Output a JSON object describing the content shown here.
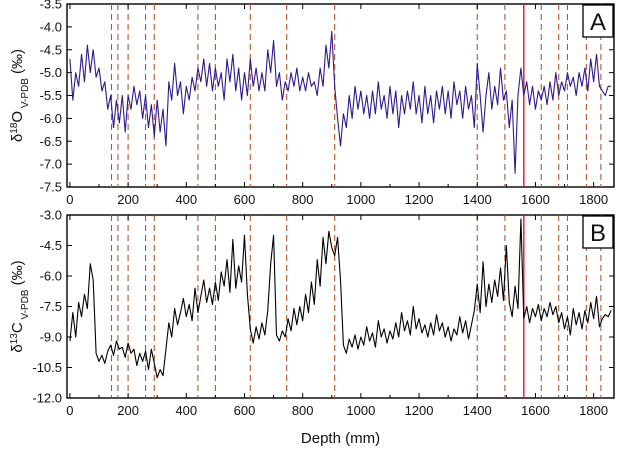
{
  "chart_data": [
    {
      "type": "line",
      "panel_label": "A",
      "ylabel": "δ18O V-PDB (‰)",
      "xlim": [
        -10,
        1870
      ],
      "ylim": [
        -7.5,
        -3.5
      ],
      "y_inverted": true,
      "xticks": [
        "0",
        "200",
        "400",
        "600",
        "800",
        "1000",
        "1200",
        "1400",
        "1600",
        "1800"
      ],
      "yticks": [
        "-3.5",
        "-4.0",
        "-4.5",
        "-5.0",
        "-5.5",
        "-6.0",
        "-6.5",
        "-7.0",
        "-7.5"
      ],
      "line_color": "#2e1a8c",
      "series": [
        {
          "x": [
            0,
            10,
            20,
            30,
            40,
            50,
            60,
            70,
            80,
            90,
            100,
            110,
            120,
            130,
            140,
            150,
            160,
            170,
            180,
            190,
            200,
            210,
            220,
            230,
            240,
            250,
            260,
            270,
            280,
            290,
            300,
            310,
            320,
            330,
            340,
            350,
            360,
            370,
            380,
            390,
            400,
            410,
            420,
            430,
            440,
            450,
            460,
            470,
            480,
            490,
            500,
            510,
            520,
            530,
            540,
            550,
            560,
            570,
            580,
            590,
            600,
            610,
            620,
            630,
            640,
            650,
            660,
            670,
            680,
            690,
            700,
            710,
            720,
            730,
            740,
            750,
            760,
            770,
            780,
            790,
            800,
            810,
            820,
            830,
            840,
            850,
            860,
            870,
            880,
            890,
            900,
            910,
            920,
            930,
            940,
            950,
            960,
            970,
            980,
            990,
            1000,
            1010,
            1020,
            1030,
            1040,
            1050,
            1060,
            1070,
            1080,
            1090,
            1100,
            1110,
            1120,
            1130,
            1140,
            1150,
            1160,
            1170,
            1180,
            1190,
            1200,
            1210,
            1220,
            1230,
            1240,
            1250,
            1260,
            1270,
            1280,
            1290,
            1300,
            1310,
            1320,
            1330,
            1340,
            1350,
            1360,
            1370,
            1380,
            1390,
            1400,
            1410,
            1420,
            1430,
            1440,
            1450,
            1460,
            1470,
            1480,
            1490,
            1500,
            1510,
            1520,
            1530,
            1540,
            1550,
            1560,
            1570,
            1580,
            1590,
            1600,
            1610,
            1620,
            1630,
            1640,
            1650,
            1660,
            1670,
            1680,
            1690,
            1700,
            1710,
            1720,
            1730,
            1740,
            1750,
            1760,
            1770,
            1780,
            1790,
            1800,
            1810,
            1820,
            1830,
            1840,
            1850,
            1860
          ],
          "y": [
            -4.7,
            -5.6,
            -5.0,
            -5.3,
            -4.6,
            -5.2,
            -4.4,
            -5.0,
            -4.5,
            -5.1,
            -4.9,
            -5.4,
            -5.2,
            -5.8,
            -5.5,
            -6.2,
            -5.6,
            -6.1,
            -5.5,
            -6.3,
            -5.5,
            -5.8,
            -5.3,
            -5.7,
            -5.4,
            -6.0,
            -5.5,
            -6.2,
            -5.7,
            -6.4,
            -5.6,
            -6.3,
            -5.8,
            -6.6,
            -5.2,
            -5.6,
            -4.8,
            -5.5,
            -5.2,
            -5.9,
            -5.3,
            -5.6,
            -5.1,
            -5.4,
            -4.9,
            -5.2,
            -4.7,
            -5.3,
            -4.8,
            -5.4,
            -4.9,
            -5.3,
            -5.0,
            -5.6,
            -4.7,
            -5.2,
            -4.6,
            -5.4,
            -4.9,
            -5.6,
            -5.0,
            -5.5,
            -4.7,
            -5.3,
            -4.9,
            -5.4,
            -5.0,
            -5.4,
            -4.5,
            -5.0,
            -4.3,
            -5.3,
            -5.0,
            -5.6,
            -5.2,
            -5.4,
            -5.0,
            -5.3,
            -4.9,
            -5.4,
            -5.1,
            -5.4,
            -5.0,
            -5.3,
            -5.2,
            -5.5,
            -4.9,
            -5.3,
            -4.4,
            -4.9,
            -4.1,
            -5.3,
            -6.0,
            -6.6,
            -5.9,
            -6.2,
            -5.5,
            -6.0,
            -5.3,
            -5.8,
            -5.4,
            -5.9,
            -5.5,
            -6.0,
            -5.4,
            -5.9,
            -5.2,
            -5.8,
            -5.5,
            -6.0,
            -5.3,
            -5.9,
            -5.4,
            -6.2,
            -5.5,
            -5.9,
            -5.4,
            -5.8,
            -5.2,
            -5.9,
            -5.5,
            -6.1,
            -5.3,
            -5.9,
            -5.5,
            -6.1,
            -5.4,
            -5.8,
            -5.3,
            -5.9,
            -5.4,
            -6.0,
            -5.2,
            -5.7,
            -5.4,
            -6.0,
            -5.3,
            -5.8,
            -5.5,
            -6.2,
            -4.8,
            -5.5,
            -6.3,
            -5.5,
            -5.0,
            -5.8,
            -5.3,
            -5.7,
            -4.9,
            -5.6,
            -5.4,
            -6.2,
            -5.6,
            -7.2,
            -5.5,
            -4.9,
            -5.5,
            -5.2,
            -5.7,
            -5.3,
            -5.8,
            -5.4,
            -5.6,
            -5.3,
            -5.7,
            -5.2,
            -5.6,
            -5.0,
            -5.5,
            -5.2,
            -5.4,
            -5.0,
            -5.3,
            -5.1,
            -5.5,
            -5.0,
            -5.3,
            -4.9,
            -5.4,
            -4.7,
            -5.2,
            -4.6,
            -5.3,
            -5.4,
            -5.5,
            -5.3,
            -5.3
          ]
        }
      ],
      "dashed_markers_x": [
        143,
        165,
        200,
        260,
        290,
        440,
        500,
        620,
        745,
        910,
        1400,
        1495,
        1620,
        1680,
        1710,
        1775,
        1825
      ],
      "solid_marker_x": 1560
    },
    {
      "type": "line",
      "panel_label": "B",
      "ylabel": "δ13C V-PDB (‰)",
      "xlabel": "Depth (mm)",
      "xlim": [
        -10,
        1870
      ],
      "ylim": [
        -12.0,
        -3.0
      ],
      "y_inverted": true,
      "xticks": [
        "0",
        "200",
        "400",
        "600",
        "800",
        "1000",
        "1200",
        "1400",
        "1600",
        "1800"
      ],
      "yticks": [
        "-3.0",
        "-4.5",
        "-6.0",
        "-7.5",
        "-9.0",
        "-10.5",
        "-12.0"
      ],
      "line_color": "#000000",
      "series": [
        {
          "x": [
            0,
            10,
            20,
            30,
            40,
            50,
            60,
            70,
            80,
            90,
            100,
            110,
            120,
            130,
            140,
            150,
            160,
            170,
            180,
            190,
            200,
            210,
            220,
            230,
            240,
            250,
            260,
            270,
            280,
            290,
            300,
            310,
            320,
            330,
            340,
            350,
            360,
            370,
            380,
            390,
            400,
            410,
            420,
            430,
            440,
            450,
            460,
            470,
            480,
            490,
            500,
            510,
            520,
            530,
            540,
            550,
            560,
            570,
            580,
            590,
            600,
            610,
            620,
            630,
            640,
            650,
            660,
            670,
            680,
            690,
            700,
            710,
            720,
            730,
            740,
            750,
            760,
            770,
            780,
            790,
            800,
            810,
            820,
            830,
            840,
            850,
            860,
            870,
            880,
            890,
            900,
            910,
            920,
            930,
            940,
            950,
            960,
            970,
            980,
            990,
            1000,
            1010,
            1020,
            1030,
            1040,
            1050,
            1060,
            1070,
            1080,
            1090,
            1100,
            1110,
            1120,
            1130,
            1140,
            1150,
            1160,
            1170,
            1180,
            1190,
            1200,
            1210,
            1220,
            1230,
            1240,
            1250,
            1260,
            1270,
            1280,
            1290,
            1300,
            1310,
            1320,
            1330,
            1340,
            1350,
            1360,
            1370,
            1380,
            1390,
            1400,
            1410,
            1420,
            1430,
            1440,
            1450,
            1460,
            1470,
            1480,
            1490,
            1500,
            1510,
            1520,
            1530,
            1540,
            1550,
            1560,
            1570,
            1580,
            1590,
            1600,
            1610,
            1620,
            1630,
            1640,
            1650,
            1660,
            1670,
            1680,
            1690,
            1700,
            1710,
            1720,
            1730,
            1740,
            1750,
            1760,
            1770,
            1780,
            1790,
            1800,
            1810,
            1820,
            1830,
            1840,
            1850,
            1860
          ],
          "y": [
            -9.2,
            -7.8,
            -9.0,
            -7.3,
            -8.0,
            -6.9,
            -7.6,
            -5.4,
            -6.2,
            -9.8,
            -10.2,
            -9.9,
            -10.3,
            -9.7,
            -9.4,
            -9.9,
            -9.2,
            -9.6,
            -9.5,
            -10.0,
            -9.3,
            -9.8,
            -9.6,
            -10.4,
            -9.8,
            -10.2,
            -9.7,
            -10.6,
            -9.6,
            -10.3,
            -11.0,
            -10.6,
            -10.9,
            -9.6,
            -8.3,
            -9.0,
            -7.6,
            -8.4,
            -7.8,
            -7.1,
            -8.0,
            -7.4,
            -8.2,
            -6.6,
            -7.8,
            -7.0,
            -6.2,
            -7.3,
            -6.6,
            -7.4,
            -6.3,
            -7.2,
            -5.8,
            -6.5,
            -5.2,
            -6.8,
            -4.2,
            -6.6,
            -5.5,
            -6.3,
            -4.0,
            -6.9,
            -8.6,
            -9.3,
            -8.5,
            -9.1,
            -8.3,
            -8.9,
            -7.7,
            -5.4,
            -4.0,
            -8.9,
            -9.2,
            -8.7,
            -9.0,
            -8.1,
            -8.7,
            -7.6,
            -8.4,
            -7.5,
            -8.2,
            -6.9,
            -7.8,
            -6.3,
            -7.4,
            -5.2,
            -6.5,
            -4.1,
            -5.4,
            -3.8,
            -4.6,
            -5.0,
            -4.1,
            -6.2,
            -9.4,
            -9.8,
            -9.1,
            -9.5,
            -8.9,
            -9.6,
            -9.0,
            -9.4,
            -8.5,
            -9.2,
            -8.8,
            -9.5,
            -8.2,
            -9.0,
            -8.6,
            -9.3,
            -8.7,
            -9.1,
            -8.3,
            -9.0,
            -7.8,
            -8.7,
            -8.2,
            -8.9,
            -7.5,
            -8.6,
            -8.1,
            -8.8,
            -8.4,
            -9.0,
            -8.3,
            -8.9,
            -7.9,
            -8.7,
            -8.3,
            -9.0,
            -8.5,
            -9.2,
            -8.6,
            -8.9,
            -8.0,
            -8.8,
            -8.2,
            -9.1,
            -8.4,
            -7.7,
            -6.4,
            -7.8,
            -5.3,
            -7.5,
            -6.4,
            -7.3,
            -6.2,
            -7.0,
            -5.6,
            -7.2,
            -4.5,
            -7.3,
            -8.0,
            -6.5,
            -7.6,
            -3.2,
            -8.1,
            -7.5,
            -8.3,
            -7.6,
            -8.0,
            -7.4,
            -8.2,
            -7.6,
            -8.0,
            -7.3,
            -7.9,
            -7.5,
            -8.3,
            -7.8,
            -8.6,
            -8.0,
            -8.9,
            -7.6,
            -8.4,
            -7.8,
            -8.6,
            -7.7,
            -8.3,
            -7.3,
            -8.1,
            -7.0,
            -8.5,
            -8.1,
            -7.9,
            -8.0,
            -7.7
          ]
        }
      ],
      "dashed_markers_x": [
        143,
        165,
        200,
        260,
        290,
        440,
        500,
        620,
        745,
        910,
        1400,
        1495,
        1620,
        1680,
        1710,
        1775,
        1825
      ],
      "solid_marker_x": 1560
    }
  ]
}
